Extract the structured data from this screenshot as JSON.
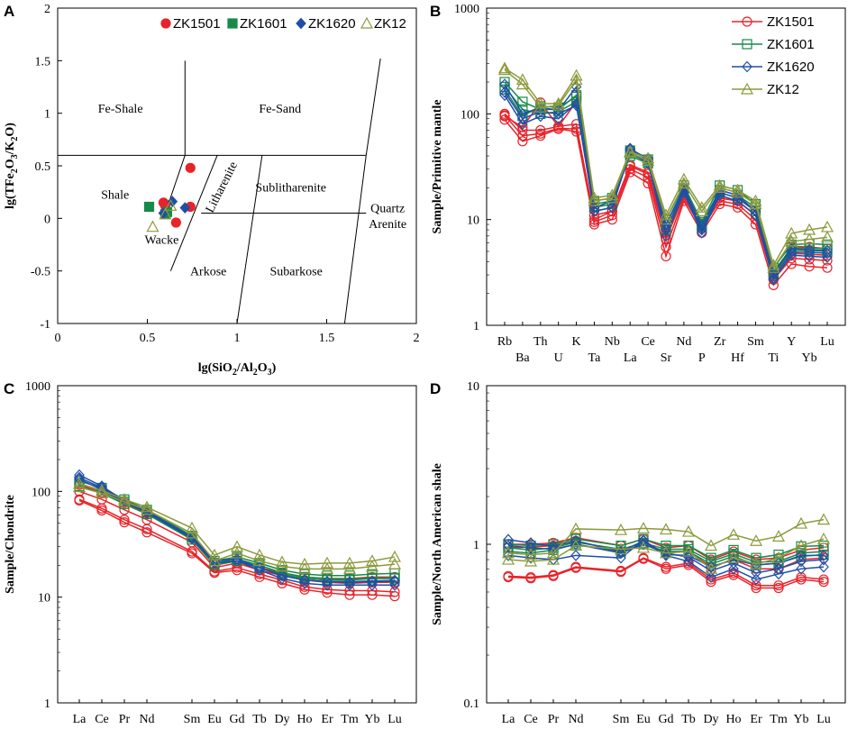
{
  "colors": {
    "ZK1501": "#e8232a",
    "ZK1601": "#168a4a",
    "ZK1620": "#1f4fa8",
    "ZK12": "#8c9a3c"
  },
  "chart_data": [
    {
      "panel": "A",
      "type": "scatter",
      "xlabel": "lg(SiO2/Al2O3)",
      "ylabel": "lg(TFe2O3/K2O)",
      "xlim": [
        0,
        2
      ],
      "ylim": [
        -1,
        2
      ],
      "xticks": [
        "0",
        "0.5",
        "1",
        "1.5",
        "2"
      ],
      "yticks": [
        "-1",
        "-0.5",
        "0",
        "0.5",
        "1",
        "1.5",
        "2"
      ],
      "fields": [
        "Fe-Shale",
        "Fe-Sand",
        "Shale",
        "Litharenite",
        "Sublitharenite",
        "Quartz",
        "Arenite",
        "Wacke",
        "Arkose",
        "Subarkose"
      ],
      "series": [
        {
          "name": "ZK1501",
          "marker": "circle",
          "points": [
            [
              0.74,
              0.48
            ],
            [
              0.59,
              0.15
            ],
            [
              0.74,
              0.11
            ],
            [
              0.66,
              -0.04
            ],
            [
              0.6,
              0.12
            ]
          ]
        },
        {
          "name": "ZK1601",
          "marker": "square",
          "points": [
            [
              0.51,
              0.11
            ],
            [
              0.61,
              0.06
            ],
            [
              0.6,
              0.04
            ]
          ]
        },
        {
          "name": "ZK1620",
          "marker": "diamond",
          "points": [
            [
              0.64,
              0.16
            ],
            [
              0.71,
              0.1
            ],
            [
              0.59,
              0.05
            ]
          ]
        },
        {
          "name": "ZK12",
          "marker": "triangle",
          "points": [
            [
              0.53,
              -0.08
            ],
            [
              0.6,
              0.04
            ],
            [
              0.63,
              0.12
            ]
          ]
        }
      ]
    },
    {
      "panel": "B",
      "type": "line",
      "ylabel": "Sample/Primitive mantle",
      "yscale": "log",
      "ylim": [
        1,
        1000
      ],
      "yticks": [
        "1",
        "10",
        "100",
        "1000"
      ],
      "categories_top": [
        "Rb",
        "Th",
        "K",
        "Nb",
        "Ce",
        "Nd",
        "Zr",
        "Sm",
        "Y",
        "Lu"
      ],
      "categories_bottom": [
        "Ba",
        "U",
        "Ta",
        "La",
        "Sr",
        "P",
        "Hf",
        "Ti",
        "Yb"
      ],
      "categories": [
        "Rb",
        "Ba",
        "Th",
        "U",
        "K",
        "Ta",
        "Nb",
        "La",
        "Ce",
        "Sr",
        "Nd",
        "P",
        "Zr",
        "Hf",
        "Sm",
        "Ti",
        "Y",
        "Yb",
        "Lu"
      ],
      "series": [
        {
          "name": "ZK1501",
          "values": [
            [
              88,
              55,
              62,
              72,
              68,
              9,
              10,
              28,
              22,
              4.5,
              15,
              7.5,
              14,
              13,
              9,
              2.4,
              3.8,
              3.6,
              3.5
            ],
            [
              97,
              62,
              65,
              73,
              72,
              9.5,
              11,
              30,
              25,
              5.5,
              16,
              8.2,
              15,
              14,
              10,
              2.7,
              4.3,
              4.2,
              4.1
            ],
            [
              100,
              70,
              70,
              76,
              80,
              10,
              12,
              32,
              27,
              6.5,
              17,
              8.8,
              16,
              15,
              11,
              2.9,
              4.8,
              4.7,
              4.6
            ],
            [
              95,
              75,
              128,
              76,
              130,
              11,
              12,
              33,
              28,
              7.5,
              17,
              9.2,
              16,
              15,
              11,
              3.0,
              5.6,
              5.5,
              5.3
            ]
          ]
        },
        {
          "name": "ZK1601",
          "values": [
            [
              180,
              110,
              100,
              105,
              130,
              13,
              14,
              42,
              35,
              9,
              19,
              9,
              19,
              17,
              13,
              3.2,
              5.4,
              5.4,
              5.3
            ],
            [
              200,
              130,
              110,
              110,
              150,
              15,
              16,
              45,
              37,
              10,
              21,
              9.5,
              21,
              19,
              14,
              3.5,
              5.8,
              5.9,
              5.8
            ],
            [
              170,
              95,
              118,
              115,
              145,
              14,
              15,
              40,
              34,
              8,
              18,
              8.5,
              18,
              16,
              12,
              3.0,
              5.1,
              5.1,
              5.0
            ]
          ]
        },
        {
          "name": "ZK1620",
          "values": [
            [
              150,
              80,
              95,
              90,
              125,
              12,
              13,
              47,
              37,
              8,
              19,
              8,
              18,
              16,
              12,
              2.8,
              4.9,
              4.9,
              4.8
            ],
            [
              160,
              90,
              105,
              100,
              120,
              12,
              13,
              44,
              34,
              7,
              18,
              7.5,
              17,
              15,
              11,
              2.7,
              4.6,
              4.5,
              4.4
            ],
            [
              190,
              100,
              115,
              108,
              180,
              13,
              15,
              46,
              38,
              9,
              20,
              8.8,
              19,
              17,
              12,
              3.1,
              5.3,
              5.2,
              5.1
            ]
          ]
        },
        {
          "name": "ZK12",
          "values": [
            [
              270,
              210,
              125,
              125,
              230,
              16,
              17,
              44,
              38,
              11,
              24,
              13,
              21,
              19,
              15,
              3.7,
              7.4,
              8.0,
              8.5
            ],
            [
              260,
              190,
              115,
              120,
              210,
              15,
              16,
              43,
              36,
              10,
              22,
              12,
              20,
              18,
              14,
              3.5,
              6.2,
              6.5,
              6.8
            ]
          ]
        }
      ]
    },
    {
      "panel": "C",
      "type": "line",
      "ylabel": "Sample/Chondrite",
      "yscale": "log",
      "ylim": [
        1,
        1000
      ],
      "yticks": [
        "1",
        "10",
        "100",
        "1000"
      ],
      "categories": [
        "La",
        "Ce",
        "Pr",
        "Nd",
        "Sm",
        "Eu",
        "Gd",
        "Tb",
        "Dy",
        "Ho",
        "Er",
        "Tm",
        "Yb",
        "Lu"
      ],
      "series": [
        {
          "name": "ZK1501",
          "values": [
            [
              82,
              66,
              51,
              41,
              26,
              17,
              18,
              15.5,
              13.5,
              11.8,
              11,
              10.5,
              10.5,
              10.2
            ],
            [
              84,
              69,
              54,
              44,
              27,
              17.5,
              19,
              16.5,
              14.5,
              12.5,
              11.8,
              11.5,
              11.5,
              11.2
            ],
            [
              100,
              84,
              67,
              54,
              33,
              19,
              21,
              18,
              16,
              14.5,
              13.8,
              13.5,
              13.8,
              13.8
            ],
            [
              115,
              98,
              78,
              62,
              36,
              20,
              22,
              19,
              17,
              15.5,
              15,
              15,
              15.5,
              15.5
            ]
          ]
        },
        {
          "name": "ZK1601",
          "values": [
            [
              118,
              102,
              80,
              64,
              37,
              21,
              23,
              20,
              17,
              15.5,
              15,
              14.8,
              15.2,
              15.2
            ],
            [
              125,
              108,
              84,
              67,
              38,
              22,
              24,
              21,
              18,
              16.5,
              16,
              16,
              16.5,
              16.8
            ],
            [
              112,
              96,
              76,
              61,
              35,
              20,
              22,
              19,
              16.5,
              15,
              14.5,
              14.5,
              15,
              15
            ]
          ]
        },
        {
          "name": "ZK1620",
          "values": [
            [
              143,
              112,
              82,
              64,
              36,
              21,
              22,
              18,
              15,
              13.5,
              13,
              13,
              13,
              13
            ],
            [
              135,
              108,
              82,
              65,
              37,
              22,
              23,
              19,
              16,
              14.5,
              14,
              13.8,
              14,
              14.2
            ],
            [
              130,
              104,
              80,
              63,
              36,
              21,
              22,
              19,
              16,
              14.5,
              14,
              14,
              14.2,
              14.4
            ]
          ]
        },
        {
          "name": "ZK12",
          "values": [
            [
              118,
              102,
              84,
              71,
              45,
              25,
              30,
              25,
              21.5,
              20.5,
              21,
              21,
              22,
              24
            ],
            [
              110,
              96,
              80,
              67,
              40,
              22,
              26,
              22,
              19.5,
              18.5,
              18.5,
              18.5,
              19.5,
              20.5
            ]
          ]
        }
      ]
    },
    {
      "panel": "D",
      "type": "line",
      "ylabel": "Sample/North American shale",
      "yscale": "log",
      "ylim": [
        0.1,
        10
      ],
      "yticks": [
        "0.1",
        "1",
        "10"
      ],
      "categories": [
        "La",
        "Ce",
        "Pr",
        "Nd",
        "Sm",
        "Eu",
        "Gd",
        "Tb",
        "Dy",
        "Ho",
        "Er",
        "Tm",
        "Yb",
        "Lu"
      ],
      "series": [
        {
          "name": "ZK1501",
          "values": [
            [
              0.62,
              0.61,
              0.63,
              0.71,
              0.67,
              0.81,
              0.7,
              0.74,
              0.58,
              0.64,
              0.53,
              0.53,
              0.6,
              0.58
            ],
            [
              0.63,
              0.62,
              0.64,
              0.72,
              0.68,
              0.82,
              0.72,
              0.76,
              0.6,
              0.66,
              0.55,
              0.55,
              0.62,
              0.6
            ],
            [
              0.95,
              0.96,
              0.98,
              1.05,
              0.9,
              1.0,
              0.9,
              0.9,
              0.72,
              0.8,
              0.7,
              0.7,
              0.8,
              0.82
            ],
            [
              1.0,
              1.0,
              1.02,
              1.1,
              0.98,
              1.08,
              0.95,
              0.98,
              0.8,
              0.9,
              0.8,
              0.82,
              0.92,
              0.95
            ]
          ]
        },
        {
          "name": "ZK1601",
          "values": [
            [
              0.95,
              0.92,
              0.95,
              1.03,
              0.93,
              1.02,
              0.93,
              0.93,
              0.78,
              0.87,
              0.77,
              0.78,
              0.88,
              0.9
            ],
            [
              1.0,
              0.98,
              1.0,
              1.08,
              0.98,
              1.08,
              0.98,
              0.98,
              0.82,
              0.92,
              0.82,
              0.86,
              0.97,
              0.98
            ],
            [
              0.9,
              0.88,
              0.92,
              1.0,
              0.9,
              1.0,
              0.9,
              0.9,
              0.75,
              0.84,
              0.74,
              0.76,
              0.84,
              0.86
            ]
          ]
        },
        {
          "name": "ZK1620",
          "values": [
            [
              1.07,
              1.02,
              0.97,
              1.05,
              0.9,
              1.05,
              0.85,
              0.78,
              0.62,
              0.7,
              0.6,
              0.65,
              0.7,
              0.72
            ],
            [
              0.98,
              0.95,
              0.93,
              1.0,
              0.88,
              1.0,
              0.88,
              0.83,
              0.68,
              0.76,
              0.66,
              0.7,
              0.78,
              0.8
            ],
            [
              0.85,
              0.82,
              0.8,
              0.85,
              0.82,
              1.06,
              0.86,
              0.85,
              0.72,
              0.8,
              0.74,
              0.76,
              0.85,
              0.85
            ]
          ]
        },
        {
          "name": "ZK12",
          "values": [
            [
              0.88,
              0.86,
              0.88,
              1.25,
              1.23,
              1.26,
              1.24,
              1.2,
              0.98,
              1.15,
              1.05,
              1.12,
              1.35,
              1.43
            ],
            [
              0.8,
              0.78,
              0.8,
              0.98,
              0.93,
              0.95,
              0.88,
              0.9,
              0.7,
              0.82,
              0.75,
              0.82,
              0.98,
              1.08
            ]
          ]
        }
      ]
    }
  ],
  "legend": [
    "ZK1501",
    "ZK1601",
    "ZK1620",
    "ZK12"
  ],
  "panelA": {
    "label": "A",
    "xlabel_main": "lg(SiO",
    "xlabel_sub1": "2",
    "xlabel_mid": "/Al",
    "xlabel_sub2": "2",
    "xlabel_mid2": "O",
    "xlabel_sub3": "3",
    "xlabel_end": ")",
    "ylabel_main": "lg(TFe",
    "ylabel_sub1": "2",
    "ylabel_mid": "O",
    "ylabel_sub2": "3",
    "ylabel_mid2": "/K",
    "ylabel_sub3": "2",
    "ylabel_mid3": "O",
    "ylabel_end": ")"
  },
  "panelB": {
    "label": "B"
  },
  "panelC": {
    "label": "C"
  },
  "panelD": {
    "label": "D"
  }
}
